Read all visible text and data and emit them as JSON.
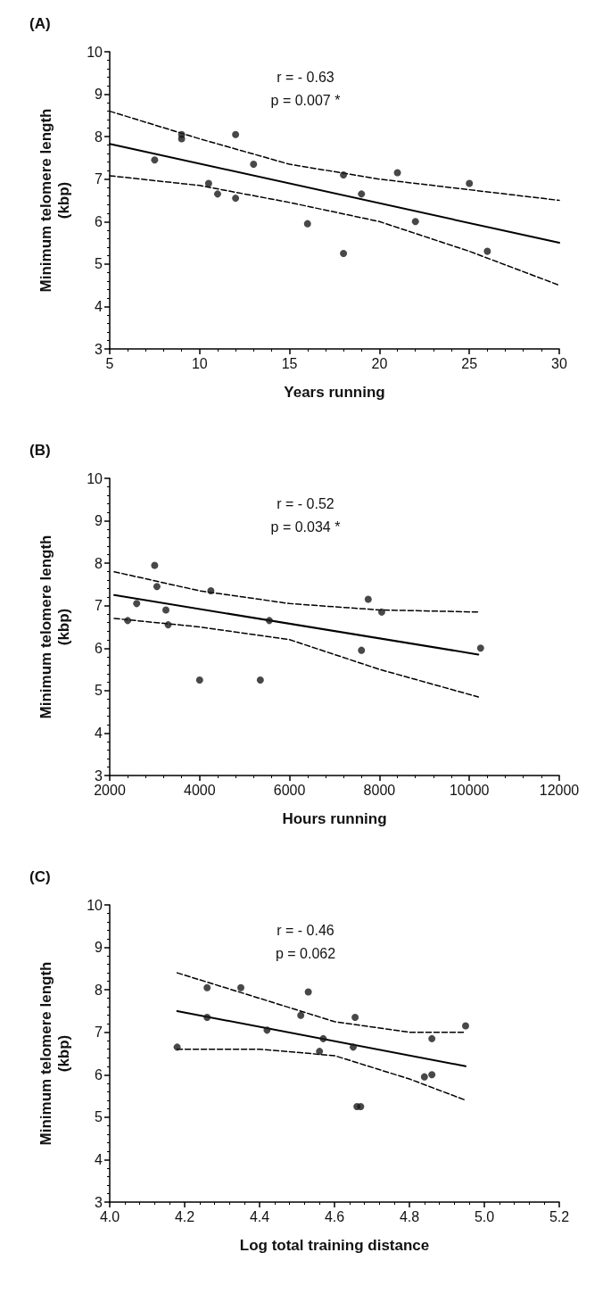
{
  "chart_data": [
    {
      "type": "scatter",
      "title": "(A)",
      "xlabel": "Years running",
      "ylabel": "Minimum telomere length\n(kbp)",
      "annotations": [
        "r = - 0.63",
        "p = 0.007 *"
      ],
      "xlim": [
        5,
        30
      ],
      "xticks": [
        5,
        10,
        15,
        20,
        25,
        30
      ],
      "ylim": [
        3,
        10
      ],
      "yticks": [
        3,
        4,
        5,
        6,
        7,
        8,
        9,
        10
      ],
      "grid": false,
      "series": [
        {
          "type": "scatter",
          "marker": "circle",
          "color": "#1a1a1a",
          "x": [
            7.5,
            9,
            9,
            10.5,
            11,
            12,
            12,
            13,
            16,
            18,
            18,
            19,
            21,
            22,
            25,
            26
          ],
          "values": [
            7.45,
            8.05,
            7.95,
            6.9,
            6.65,
            8.05,
            6.55,
            7.35,
            5.95,
            7.1,
            5.25,
            6.65,
            7.15,
            6.0,
            6.9,
            5.3
          ]
        },
        {
          "type": "line",
          "marker": "none",
          "line_style": "solid",
          "color": "#000000",
          "x": [
            5,
            30
          ],
          "values": [
            7.83,
            5.5
          ]
        },
        {
          "type": "line",
          "marker": "none",
          "line_style": "dashed",
          "color": "#000000",
          "x": [
            5,
            10,
            15,
            20,
            25,
            30
          ],
          "values": [
            8.6,
            7.95,
            7.35,
            7.0,
            6.75,
            6.5
          ]
        },
        {
          "type": "line",
          "marker": "none",
          "line_style": "dashed",
          "color": "#000000",
          "x": [
            5,
            10,
            15,
            20,
            25,
            30
          ],
          "values": [
            7.08,
            6.85,
            6.45,
            6.0,
            5.3,
            4.5
          ]
        }
      ]
    },
    {
      "type": "scatter",
      "title": "(B)",
      "xlabel": "Hours running",
      "ylabel": "Minimum telomere length\n(kbp)",
      "annotations": [
        "r = - 0.52",
        "p = 0.034 *"
      ],
      "xlim": [
        2000,
        12000
      ],
      "xticks": [
        2000,
        4000,
        6000,
        8000,
        10000,
        12000
      ],
      "ylim": [
        3,
        10
      ],
      "yticks": [
        3,
        4,
        5,
        6,
        7,
        8,
        9,
        10
      ],
      "grid": false,
      "series": [
        {
          "type": "scatter",
          "marker": "circle",
          "color": "#1a1a1a",
          "x": [
            2400,
            2600,
            3000,
            3050,
            3250,
            3300,
            4000,
            4250,
            5350,
            5550,
            7600,
            7750,
            8050,
            10250
          ],
          "values": [
            6.65,
            7.05,
            7.95,
            7.45,
            6.9,
            6.55,
            5.25,
            7.35,
            5.25,
            6.65,
            5.95,
            7.15,
            6.85,
            6.0
          ]
        },
        {
          "type": "line",
          "marker": "none",
          "line_style": "solid",
          "color": "#000000",
          "x": [
            2100,
            10200
          ],
          "values": [
            7.25,
            5.85
          ]
        },
        {
          "type": "line",
          "marker": "none",
          "line_style": "dashed",
          "color": "#000000",
          "x": [
            2100,
            4000,
            6000,
            8000,
            10200
          ],
          "values": [
            7.8,
            7.35,
            7.05,
            6.9,
            6.85
          ]
        },
        {
          "type": "line",
          "marker": "none",
          "line_style": "dashed",
          "color": "#000000",
          "x": [
            2100,
            4000,
            6000,
            8000,
            10200
          ],
          "values": [
            6.7,
            6.5,
            6.2,
            5.5,
            4.85
          ]
        }
      ]
    },
    {
      "type": "scatter",
      "title": "(C)",
      "xlabel": "Log total training distance",
      "ylabel": "Minimum telomere length\n(kbp)",
      "annotations": [
        "r = - 0.46",
        "p = 0.062"
      ],
      "xlim": [
        4.0,
        5.2
      ],
      "xticks": [
        {
          "value": 4.0,
          "label": "4.0"
        },
        {
          "value": 4.2,
          "label": "4.2"
        },
        {
          "value": 4.4,
          "label": "4.4"
        },
        {
          "value": 4.6,
          "label": "4.6"
        },
        {
          "value": 4.8,
          "label": "4.8"
        },
        {
          "value": 5.0,
          "label": "5.0"
        },
        {
          "value": 5.2,
          "label": "5.2"
        }
      ],
      "ylim": [
        3,
        10
      ],
      "yticks": [
        3,
        4,
        5,
        6,
        7,
        8,
        9,
        10
      ],
      "grid": false,
      "series": [
        {
          "type": "scatter",
          "marker": "circle",
          "color": "#1a1a1a",
          "x": [
            4.18,
            4.26,
            4.26,
            4.35,
            4.42,
            4.51,
            4.53,
            4.56,
            4.57,
            4.65,
            4.655,
            4.66,
            4.67,
            4.84,
            4.86,
            4.86,
            4.95
          ],
          "values": [
            6.65,
            8.05,
            7.35,
            8.05,
            7.05,
            7.4,
            7.95,
            6.55,
            6.85,
            6.65,
            7.35,
            5.25,
            5.25,
            5.95,
            6.0,
            6.85,
            7.15
          ]
        },
        {
          "type": "line",
          "marker": "none",
          "line_style": "solid",
          "color": "#000000",
          "x": [
            4.18,
            4.95
          ],
          "values": [
            7.5,
            6.2
          ]
        },
        {
          "type": "line",
          "marker": "none",
          "line_style": "dashed",
          "color": "#000000",
          "x": [
            4.18,
            4.4,
            4.6,
            4.8,
            4.95
          ],
          "values": [
            8.4,
            7.8,
            7.25,
            7.0,
            7.0
          ]
        },
        {
          "type": "line",
          "marker": "none",
          "line_style": "dashed",
          "color": "#000000",
          "x": [
            4.18,
            4.4,
            4.6,
            4.8,
            4.95
          ],
          "values": [
            6.6,
            6.6,
            6.45,
            5.9,
            5.4
          ]
        }
      ]
    }
  ]
}
